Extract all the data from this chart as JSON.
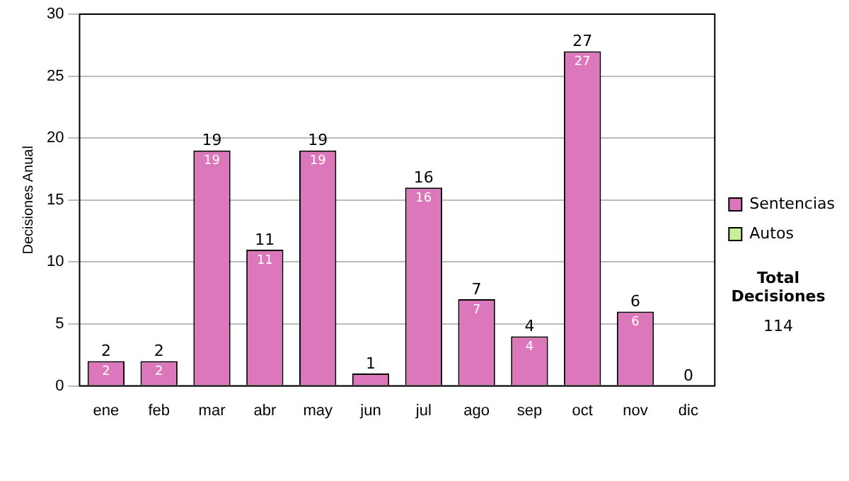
{
  "chart_data": {
    "type": "bar",
    "stacked": true,
    "ylabel": "Decisiones Anual",
    "categories": [
      "ene",
      "feb",
      "mar",
      "abr",
      "may",
      "jun",
      "jul",
      "ago",
      "sep",
      "oct",
      "nov",
      "dic"
    ],
    "series": [
      {
        "name": "Sentencias",
        "color": "#dd77bb",
        "values": [
          2,
          2,
          19,
          11,
          19,
          1,
          16,
          7,
          4,
          27,
          6,
          0
        ],
        "value_labels": [
          "2",
          "2",
          "19",
          "11",
          "19",
          null,
          "16",
          "7",
          "4",
          "27",
          "6",
          null
        ]
      },
      {
        "name": "Autos",
        "color": "#ccee99",
        "values": [
          0,
          0,
          0,
          0,
          0,
          0,
          0,
          0,
          0,
          0,
          0,
          0
        ]
      }
    ],
    "totals": [
      "2",
      "2",
      "19",
      "11",
      "19",
      "1",
      "16",
      "7",
      "4",
      "27",
      "6",
      "0"
    ],
    "ylim": [
      0,
      30
    ],
    "yticks": [
      0,
      5,
      10,
      15,
      20,
      25,
      30
    ],
    "grid": "y",
    "legend": "right",
    "annotations": [
      "Total Decisiones",
      "114"
    ]
  }
}
